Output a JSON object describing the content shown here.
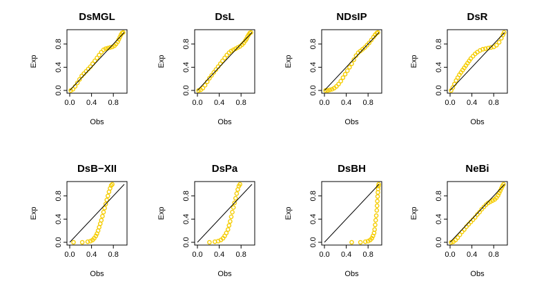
{
  "colors": {
    "points": "#F5CC00",
    "reference_line": "#000000"
  },
  "chart_data": [
    {
      "type": "scatter",
      "title": "DsMGL",
      "xlabel": "Obs",
      "ylabel": "Exp",
      "xlim": [
        0,
        1
      ],
      "ylim": [
        0,
        1
      ],
      "xticks": [
        "0.0",
        "0.4",
        "0.8"
      ],
      "yticks": [
        "0.0",
        "0.4",
        "0.8"
      ],
      "reference_line": {
        "x": [
          0,
          1
        ],
        "y": [
          0,
          1
        ]
      },
      "series": [
        {
          "name": "pp-points",
          "x": [
            0.02,
            0.06,
            0.1,
            0.14,
            0.18,
            0.22,
            0.26,
            0.3,
            0.34,
            0.38,
            0.42,
            0.46,
            0.5,
            0.54,
            0.58,
            0.62,
            0.66,
            0.7,
            0.74,
            0.78,
            0.82,
            0.85,
            0.88,
            0.9,
            0.92,
            0.94,
            0.96,
            0.98
          ],
          "y": [
            0.0,
            0.02,
            0.07,
            0.13,
            0.19,
            0.25,
            0.29,
            0.33,
            0.37,
            0.41,
            0.46,
            0.51,
            0.56,
            0.61,
            0.66,
            0.7,
            0.72,
            0.73,
            0.74,
            0.75,
            0.77,
            0.8,
            0.84,
            0.88,
            0.92,
            0.96,
            0.99,
            1.0
          ]
        }
      ]
    },
    {
      "type": "scatter",
      "title": "DsL",
      "xlabel": "Obs",
      "ylabel": "Exp",
      "xlim": [
        0,
        1
      ],
      "ylim": [
        0,
        1
      ],
      "xticks": [
        "0.0",
        "0.4",
        "0.8"
      ],
      "yticks": [
        "0.0",
        "0.4",
        "0.8"
      ],
      "reference_line": {
        "x": [
          0,
          1
        ],
        "y": [
          0,
          1
        ]
      },
      "series": [
        {
          "name": "pp-points",
          "x": [
            0.02,
            0.06,
            0.1,
            0.14,
            0.18,
            0.22,
            0.26,
            0.3,
            0.34,
            0.38,
            0.42,
            0.46,
            0.5,
            0.54,
            0.58,
            0.62,
            0.66,
            0.7,
            0.74,
            0.78,
            0.82,
            0.85,
            0.88,
            0.9,
            0.92,
            0.94,
            0.96,
            0.98
          ],
          "y": [
            0.0,
            0.01,
            0.04,
            0.09,
            0.15,
            0.21,
            0.26,
            0.31,
            0.36,
            0.41,
            0.46,
            0.51,
            0.56,
            0.61,
            0.65,
            0.68,
            0.7,
            0.72,
            0.74,
            0.76,
            0.79,
            0.82,
            0.86,
            0.89,
            0.93,
            0.96,
            0.99,
            1.0
          ]
        }
      ]
    },
    {
      "type": "scatter",
      "title": "NDsIP",
      "xlabel": "Obs",
      "ylabel": "Exp",
      "xlim": [
        0,
        1
      ],
      "ylim": [
        0,
        1
      ],
      "xticks": [
        "0.0",
        "0.4",
        "0.8"
      ],
      "yticks": [
        "0.0",
        "0.4",
        "0.8"
      ],
      "reference_line": {
        "x": [
          0,
          1
        ],
        "y": [
          0,
          1
        ]
      },
      "series": [
        {
          "name": "pp-points",
          "x": [
            0.02,
            0.06,
            0.1,
            0.14,
            0.18,
            0.22,
            0.26,
            0.3,
            0.34,
            0.38,
            0.42,
            0.46,
            0.5,
            0.54,
            0.58,
            0.62,
            0.66,
            0.7,
            0.74,
            0.78,
            0.82,
            0.86,
            0.9,
            0.93,
            0.96,
            0.98
          ],
          "y": [
            0.0,
            0.0,
            0.01,
            0.02,
            0.04,
            0.07,
            0.11,
            0.16,
            0.22,
            0.28,
            0.34,
            0.4,
            0.46,
            0.53,
            0.6,
            0.65,
            0.68,
            0.71,
            0.74,
            0.78,
            0.82,
            0.87,
            0.92,
            0.96,
            0.99,
            1.0
          ]
        }
      ]
    },
    {
      "type": "scatter",
      "title": "DsR",
      "xlabel": "Obs",
      "ylabel": "Exp",
      "xlim": [
        0,
        1
      ],
      "ylim": [
        0,
        1
      ],
      "xticks": [
        "0.0",
        "0.4",
        "0.8"
      ],
      "yticks": [
        "0.0",
        "0.4",
        "0.8"
      ],
      "reference_line": {
        "x": [
          0,
          1
        ],
        "y": [
          0,
          1
        ]
      },
      "series": [
        {
          "name": "pp-points",
          "x": [
            0.02,
            0.05,
            0.08,
            0.11,
            0.14,
            0.17,
            0.2,
            0.23,
            0.26,
            0.29,
            0.32,
            0.35,
            0.38,
            0.42,
            0.46,
            0.5,
            0.55,
            0.6,
            0.65,
            0.7,
            0.75,
            0.8,
            0.85,
            0.9,
            0.94,
            0.97,
            0.99
          ],
          "y": [
            0.0,
            0.05,
            0.11,
            0.17,
            0.22,
            0.27,
            0.31,
            0.35,
            0.39,
            0.43,
            0.47,
            0.51,
            0.55,
            0.59,
            0.63,
            0.66,
            0.69,
            0.71,
            0.72,
            0.73,
            0.74,
            0.75,
            0.78,
            0.83,
            0.9,
            0.96,
            1.0
          ]
        }
      ]
    },
    {
      "type": "scatter",
      "title": "DsB−XII",
      "xlabel": "Obs",
      "ylabel": "Exp",
      "xlim": [
        0,
        1
      ],
      "ylim": [
        0,
        1
      ],
      "xticks": [
        "0.0",
        "0.4",
        "0.8"
      ],
      "yticks": [
        "0.0",
        "0.4",
        "0.8"
      ],
      "reference_line": {
        "x": [
          0,
          1
        ],
        "y": [
          0,
          1
        ]
      },
      "series": [
        {
          "name": "pp-points",
          "x": [
            0.07,
            0.23,
            0.33,
            0.38,
            0.42,
            0.45,
            0.48,
            0.5,
            0.52,
            0.54,
            0.56,
            0.58,
            0.6,
            0.62,
            0.64,
            0.66,
            0.68,
            0.7,
            0.72,
            0.74,
            0.76,
            0.78
          ],
          "y": [
            0.0,
            0.0,
            0.01,
            0.02,
            0.04,
            0.07,
            0.11,
            0.15,
            0.2,
            0.26,
            0.32,
            0.38,
            0.45,
            0.52,
            0.59,
            0.66,
            0.73,
            0.8,
            0.87,
            0.93,
            0.98,
            1.0
          ]
        }
      ]
    },
    {
      "type": "scatter",
      "title": "DsPa",
      "xlabel": "Obs",
      "ylabel": "Exp",
      "xlim": [
        0,
        1
      ],
      "ylim": [
        0,
        1
      ],
      "xticks": [
        "0.0",
        "0.4",
        "0.8"
      ],
      "yticks": [
        "0.0",
        "0.4",
        "0.8"
      ],
      "reference_line": {
        "x": [
          0,
          1
        ],
        "y": [
          0,
          1
        ]
      },
      "series": [
        {
          "name": "pp-points",
          "x": [
            0.22,
            0.32,
            0.38,
            0.43,
            0.47,
            0.5,
            0.53,
            0.56,
            0.58,
            0.6,
            0.62,
            0.64,
            0.66,
            0.68,
            0.7,
            0.72,
            0.74,
            0.76,
            0.78
          ],
          "y": [
            0.0,
            0.01,
            0.02,
            0.04,
            0.07,
            0.11,
            0.16,
            0.22,
            0.29,
            0.36,
            0.44,
            0.52,
            0.6,
            0.68,
            0.76,
            0.84,
            0.91,
            0.97,
            1.0
          ]
        }
      ]
    },
    {
      "type": "scatter",
      "title": "DsBH",
      "xlabel": "Obs",
      "ylabel": "Exp",
      "xlim": [
        0,
        1
      ],
      "ylim": [
        0,
        1
      ],
      "xticks": [
        "0.0",
        "0.4",
        "0.8"
      ],
      "yticks": [
        "0.0",
        "0.4",
        "0.8"
      ],
      "reference_line": {
        "x": [
          0,
          1
        ],
        "y": [
          0,
          1
        ]
      },
      "series": [
        {
          "name": "pp-points",
          "x": [
            0.5,
            0.66,
            0.75,
            0.8,
            0.84,
            0.87,
            0.89,
            0.91,
            0.92,
            0.93,
            0.94,
            0.95,
            0.96,
            0.965,
            0.97,
            0.975,
            0.98,
            0.985,
            0.99,
            0.995
          ],
          "y": [
            0.0,
            0.0,
            0.01,
            0.02,
            0.04,
            0.07,
            0.11,
            0.16,
            0.22,
            0.3,
            0.38,
            0.46,
            0.55,
            0.63,
            0.71,
            0.79,
            0.86,
            0.92,
            0.97,
            1.0
          ]
        }
      ]
    },
    {
      "type": "scatter",
      "title": "NeBi",
      "xlabel": "Obs",
      "ylabel": "Exp",
      "xlim": [
        0,
        1
      ],
      "ylim": [
        0,
        1
      ],
      "xticks": [
        "0.0",
        "0.4",
        "0.8"
      ],
      "yticks": [
        "0.0",
        "0.4",
        "0.8"
      ],
      "reference_line": {
        "x": [
          0,
          1
        ],
        "y": [
          0,
          1
        ]
      },
      "series": [
        {
          "name": "pp-points",
          "x": [
            0.02,
            0.06,
            0.1,
            0.14,
            0.18,
            0.22,
            0.26,
            0.3,
            0.34,
            0.38,
            0.42,
            0.46,
            0.5,
            0.54,
            0.58,
            0.62,
            0.66,
            0.7,
            0.74,
            0.78,
            0.82,
            0.85,
            0.88,
            0.9,
            0.92,
            0.94,
            0.96,
            0.98
          ],
          "y": [
            0.0,
            0.01,
            0.04,
            0.08,
            0.13,
            0.18,
            0.22,
            0.27,
            0.31,
            0.35,
            0.39,
            0.43,
            0.48,
            0.52,
            0.57,
            0.61,
            0.65,
            0.68,
            0.7,
            0.72,
            0.74,
            0.77,
            0.81,
            0.85,
            0.89,
            0.93,
            0.97,
            1.0
          ]
        }
      ]
    }
  ]
}
